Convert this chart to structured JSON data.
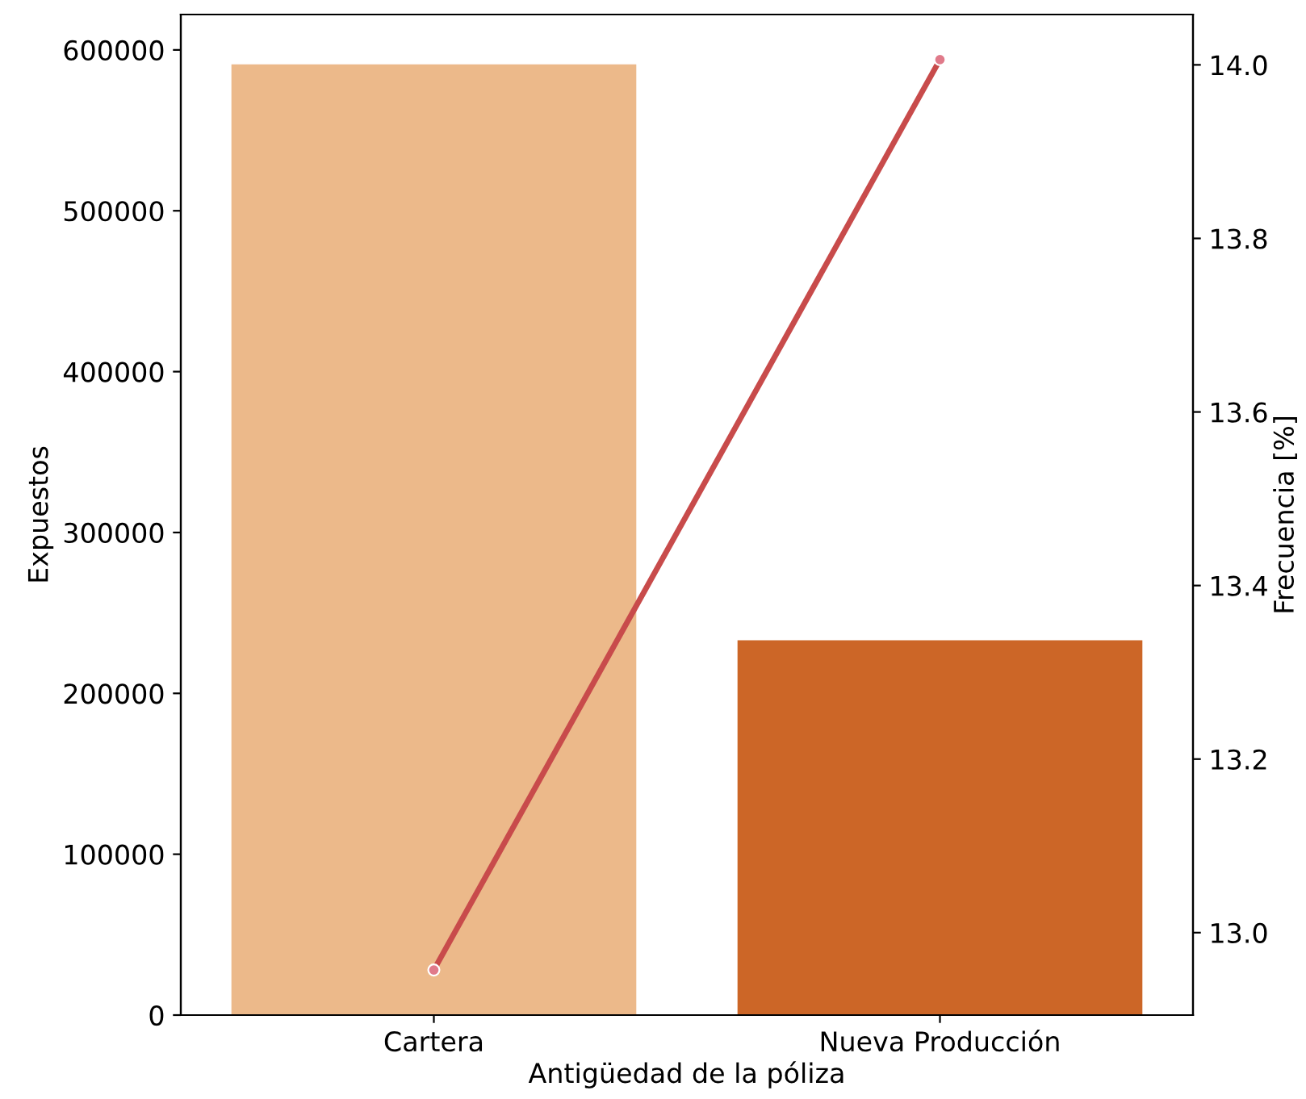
{
  "chart_data": {
    "type": "bar",
    "xlabel": "Antigüedad de la póliza",
    "ylabel": "Expuestos",
    "y2label": "Frecuencia [%]",
    "categories": [
      "Cartera",
      "Nueva Producción"
    ],
    "series": [
      {
        "colors": [
          "#ecb98a",
          "#cc6627"
        ],
        "values": [
          591000,
          233000
        ]
      },
      {
        "type": "line",
        "axis": "y2",
        "color": "#c84b4b",
        "values": [
          12.957,
          14.006
        ],
        "marker": "circle"
      }
    ],
    "ylim": [
      0,
      622000
    ],
    "yticks": [
      0,
      100000,
      200000,
      300000,
      400000,
      500000,
      600000
    ],
    "y2lim": [
      12.905,
      14.058
    ],
    "y2ticks": [
      {
        "value": 13.0,
        "label": "13.0"
      },
      {
        "value": 13.2,
        "label": "13.2"
      },
      {
        "value": 13.4,
        "label": "13.4"
      },
      {
        "value": 13.6,
        "label": "13.6"
      },
      {
        "value": 13.8,
        "label": "13.8"
      },
      {
        "value": 14.0,
        "label": "14.0"
      }
    ],
    "grid": false,
    "legend": false
  }
}
